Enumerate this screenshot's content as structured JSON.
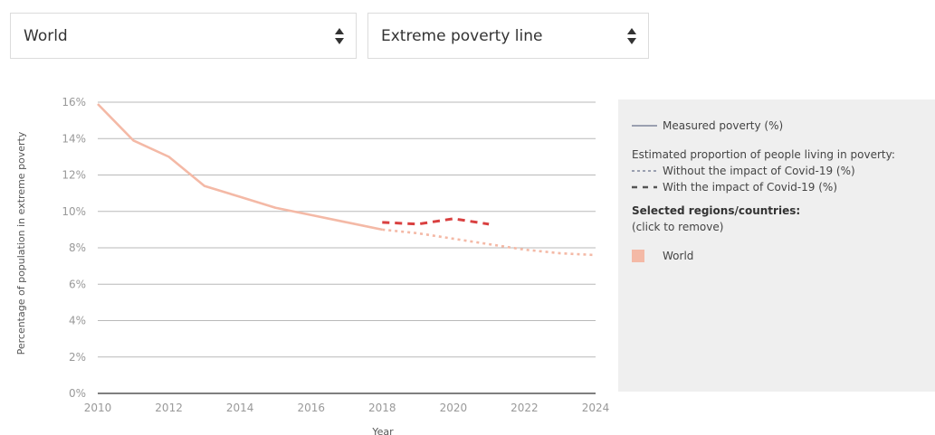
{
  "controls": {
    "region_select": "World",
    "poverty_line_select": "Extreme poverty line"
  },
  "legend": {
    "measured": "Measured poverty (%)",
    "estimated_heading": "Estimated proportion of people living in poverty:",
    "without_covid": "Without the impact of Covid-19 (%)",
    "with_covid": "With the impact of Covid-19 (%)",
    "selected_heading": "Selected regions/countries:",
    "click_hint": "(click to remove)",
    "selected_items": [
      "World"
    ]
  },
  "colors": {
    "measured_line": "#f4b9a6",
    "projection_line": "#f4b9a6",
    "covid_line": "#d94040",
    "legend_measured": "#9aa0b0",
    "legend_dash": "#555555",
    "world_swatch": "#f4b9a6",
    "grid": "#b9b9b9",
    "axis": "#333333"
  },
  "chart_data": {
    "type": "line",
    "xlabel": "Year",
    "ylabel": "Percentage of population in extreme poverty",
    "xlim": [
      2010,
      2024
    ],
    "ylim": [
      0,
      16
    ],
    "x_ticks": [
      "2010",
      "2012",
      "2014",
      "2016",
      "2018",
      "2020",
      "2022",
      "2024"
    ],
    "y_ticks": [
      "0%",
      "2%",
      "4%",
      "6%",
      "8%",
      "10%",
      "12%",
      "14%",
      "16%"
    ],
    "grid": true,
    "legend_position": "right",
    "series": [
      {
        "name": "World",
        "kind": "measured",
        "x": [
          2010,
          2011,
          2012,
          2013,
          2014,
          2015,
          2016,
          2017,
          2018
        ],
        "y": [
          15.9,
          13.9,
          13.0,
          11.4,
          10.8,
          10.2,
          9.8,
          9.4,
          9.0
        ]
      },
      {
        "kind": "projection_without_covid",
        "x": [
          2018,
          2019,
          2020,
          2021,
          2022,
          2023,
          2024
        ],
        "y": [
          9.0,
          8.8,
          8.5,
          8.2,
          7.9,
          7.7,
          7.6
        ]
      },
      {
        "kind": "projection_with_covid",
        "x": [
          2018,
          2019,
          2020,
          2021
        ],
        "y": [
          9.4,
          9.3,
          9.6,
          9.3
        ]
      }
    ]
  }
}
